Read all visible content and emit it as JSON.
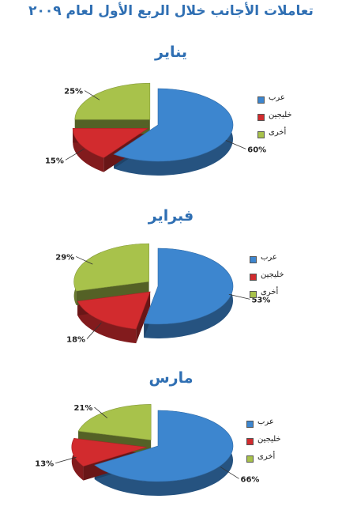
{
  "page": {
    "title": "تعاملات الأجانب خلال الربع الأول لعام ٢٠٠٩"
  },
  "colors": {
    "arab": "#3d86cf",
    "gulf": "#d22b2e",
    "other": "#a8c24b",
    "title": "#2f6fb3"
  },
  "chart_data": [
    {
      "type": "pie",
      "title": "يناير",
      "categories": [
        "عرب",
        "خليجين",
        "أخرى"
      ],
      "values": [
        60,
        15,
        25
      ],
      "labels": [
        "60%",
        "15%",
        "25%"
      ],
      "legend_position": "right"
    },
    {
      "type": "pie",
      "title": "فبراير",
      "categories": [
        "عرب",
        "خليجين",
        "أخرى"
      ],
      "values": [
        53,
        18,
        29
      ],
      "labels": [
        "53%",
        "18%",
        "29%"
      ],
      "legend_position": "right"
    },
    {
      "type": "pie",
      "title": "مارس",
      "categories": [
        "عرب",
        "خليجين",
        "أخرى"
      ],
      "values": [
        66,
        13,
        21
      ],
      "labels": [
        "66%",
        "13%",
        "21%"
      ],
      "legend_position": "right"
    }
  ]
}
